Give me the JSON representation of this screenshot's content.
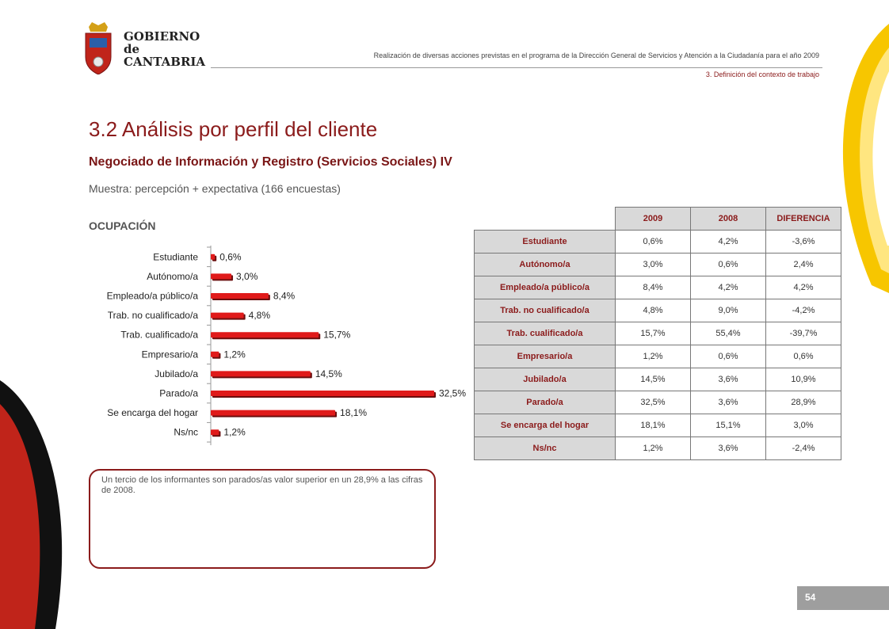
{
  "logo": {
    "line1": "GOBIERNO",
    "line2": "de",
    "line3": "CANTABRIA"
  },
  "header": {
    "subtitle": "Realización de diversas acciones previstas en el programa de la Dirección General de Servicios y Atención a la Ciudadanía para el año 2009",
    "section": "3. Definición del contexto de trabajo"
  },
  "page": {
    "title": "3.2 Análisis por perfil del cliente",
    "subtitle": "Negociado de Información y Registro (Servicios Sociales) IV",
    "sample": "Muestra: percepción + expectativa (166 encuestas)",
    "section_label": "OCUPACIÓN",
    "note": "Un tercio de los informantes son parados/as valor superior en un 28,9% a las cifras de 2008.",
    "number": "54"
  },
  "colors": {
    "accent": "#8b1b1b",
    "bar": "#e01a1a",
    "gray": "#d9d9d9"
  },
  "chart_data": {
    "type": "bar",
    "orientation": "horizontal",
    "categories": [
      "Estudiante",
      "Autónomo/a",
      "Empleado/a público/a",
      "Trab. no cualificado/a",
      "Trab. cualificado/a",
      "Empresario/a",
      "Jubilado/a",
      "Parado/a",
      "Se encarga del hogar",
      "Ns/nc"
    ],
    "values": [
      0.6,
      3.0,
      8.4,
      4.8,
      15.7,
      1.2,
      14.5,
      32.5,
      18.1,
      1.2
    ],
    "value_labels": [
      "0,6%",
      "3,0%",
      "8,4%",
      "4,8%",
      "15,7%",
      "1,2%",
      "14,5%",
      "32,5%",
      "18,1%",
      "1,2%"
    ],
    "xlim": [
      0,
      32.5
    ],
    "grid": false,
    "legend": "none"
  },
  "table": {
    "headers": [
      "2009",
      "2008",
      "DIFERENCIA"
    ],
    "rows": [
      {
        "label": "Estudiante",
        "v2009": "0,6%",
        "v2008": "4,2%",
        "diff": "-3,6%"
      },
      {
        "label": "Autónomo/a",
        "v2009": "3,0%",
        "v2008": "0,6%",
        "diff": "2,4%"
      },
      {
        "label": "Empleado/a público/a",
        "v2009": "8,4%",
        "v2008": "4,2%",
        "diff": "4,2%"
      },
      {
        "label": "Trab. no cualificado/a",
        "v2009": "4,8%",
        "v2008": "9,0%",
        "diff": "-4,2%"
      },
      {
        "label": "Trab. cualificado/a",
        "v2009": "15,7%",
        "v2008": "55,4%",
        "diff": "-39,7%"
      },
      {
        "label": "Empresario/a",
        "v2009": "1,2%",
        "v2008": "0,6%",
        "diff": "0,6%"
      },
      {
        "label": "Jubilado/a",
        "v2009": "14,5%",
        "v2008": "3,6%",
        "diff": "10,9%"
      },
      {
        "label": "Parado/a",
        "v2009": "32,5%",
        "v2008": "3,6%",
        "diff": "28,9%"
      },
      {
        "label": "Se encarga del hogar",
        "v2009": "18,1%",
        "v2008": "15,1%",
        "diff": "3,0%"
      },
      {
        "label": "Ns/nc",
        "v2009": "1,2%",
        "v2008": "3,6%",
        "diff": "-2,4%"
      }
    ]
  }
}
